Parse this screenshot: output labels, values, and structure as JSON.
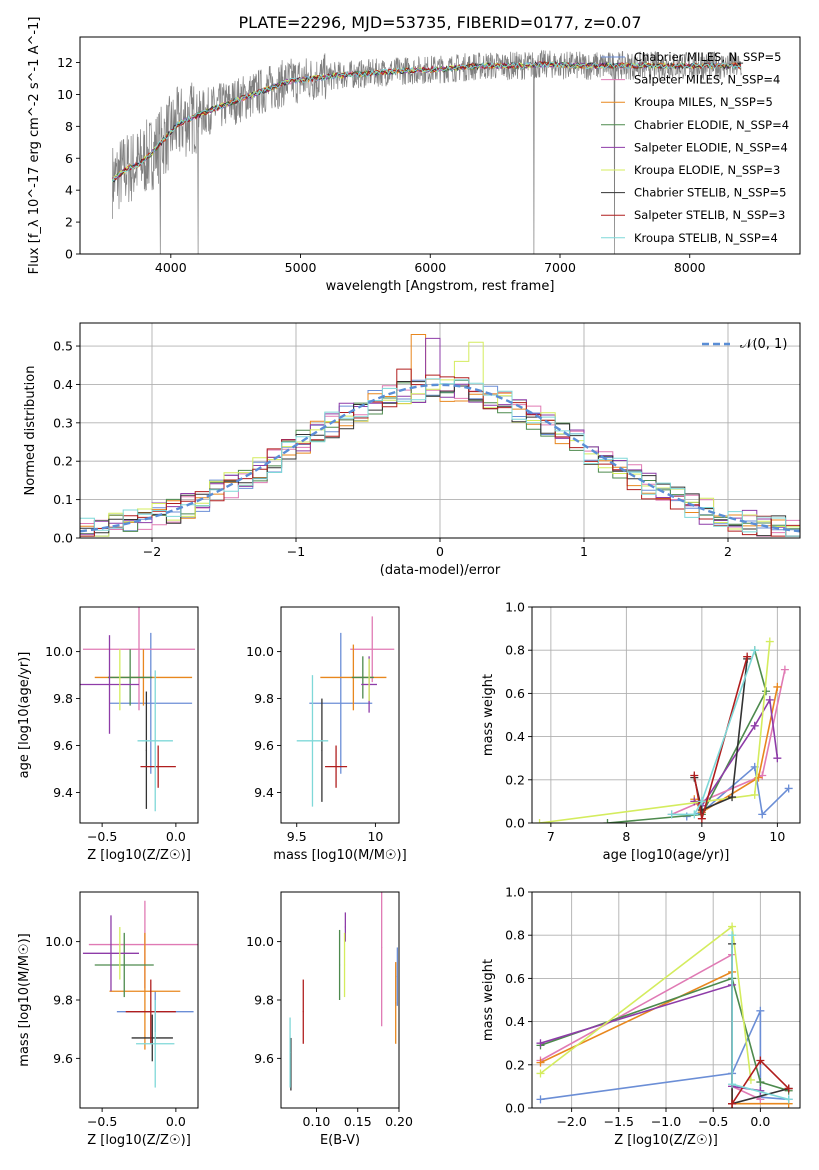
{
  "figure_title": "PLATE=2296, MJD=53735, FIBERID=0177, z=0.07",
  "chart_data": [
    {
      "id": "spectrum",
      "type": "line",
      "title": "PLATE=2296, MJD=53735, FIBERID=0177, z=0.07",
      "xlabel": "wavelength [Angstrom, rest frame]",
      "ylabel": "Flux [f_λ 10^-17 erg cm^-2 s^-1 A^-1]",
      "xlim": [
        3300,
        8850
      ],
      "ylim": [
        0,
        13.6
      ],
      "xticks": [
        4000,
        5000,
        6000,
        7000,
        8000
      ],
      "yticks": [
        0,
        2,
        4,
        6,
        8,
        10,
        12
      ],
      "grid": false,
      "legend_position": "right",
      "data_color": "#808080",
      "continuum": {
        "x": [
          3550,
          3650,
          3750,
          3850,
          3950,
          4050,
          4150,
          4300,
          4500,
          4700,
          4900,
          5100,
          5300,
          5500,
          5800,
          6100,
          6400,
          6700,
          6900,
          7100,
          7300,
          7500,
          7800,
          8100,
          8400
        ],
        "y": [
          4.6,
          5.3,
          5.6,
          6.3,
          7.2,
          8.1,
          8.5,
          9.0,
          9.6,
          10.2,
          10.8,
          11.0,
          11.2,
          11.3,
          11.5,
          11.6,
          11.8,
          11.8,
          11.9,
          11.8,
          11.8,
          11.8,
          11.8,
          11.8,
          11.8
        ]
      },
      "data_dips": [
        {
          "x": 3920,
          "y": 0
        },
        {
          "x": 4210,
          "y": 0
        },
        {
          "x": 6800,
          "y": 0
        },
        {
          "x": 7420,
          "y": 0
        }
      ],
      "series": [
        {
          "name": "Chabrier MILES, N_SSP=5",
          "color": "#6b8ed6"
        },
        {
          "name": "Salpeter MILES, N_SSP=4",
          "color": "#e07ab4"
        },
        {
          "name": "Kroupa MILES, N_SSP=5",
          "color": "#e8871e"
        },
        {
          "name": "Chabrier ELODIE, N_SSP=4",
          "color": "#4d8a4d"
        },
        {
          "name": "Salpeter ELODIE, N_SSP=4",
          "color": "#8e3ca8"
        },
        {
          "name": "Kroupa ELODIE, N_SSP=3",
          "color": "#d4ec5e"
        },
        {
          "name": "Chabrier STELIB, N_SSP=5",
          "color": "#333333"
        },
        {
          "name": "Salpeter STELIB, N_SSP=3",
          "color": "#b01e1e"
        },
        {
          "name": "Kroupa STELIB, N_SSP=4",
          "color": "#7fd8d8"
        }
      ]
    },
    {
      "id": "residuals",
      "type": "histogram",
      "xlabel": "(data-model)/error",
      "ylabel": "Normed distribution",
      "xlim": [
        -2.5,
        2.5
      ],
      "ylim": [
        0,
        0.56
      ],
      "xticks": [
        -2,
        -1,
        0,
        1,
        2
      ],
      "yticks": [
        0.0,
        0.1,
        0.2,
        0.3,
        0.4,
        0.5
      ],
      "grid": true,
      "legend_position": "top-right",
      "gaussian_label": "𝒩(0, 1)",
      "gaussian_color": "#5a8ed6",
      "bin_width": 0.1,
      "bin_start": -2.5,
      "outline_colors": [
        "#6b8ed6",
        "#e07ab4",
        "#e8871e",
        "#4d8a4d",
        "#8e3ca8",
        "#d4ec5e",
        "#333333",
        "#b01e1e",
        "#7fd8d8"
      ],
      "peak_spikes": [
        {
          "x": -0.15,
          "y": 0.53,
          "color": "#e8871e"
        },
        {
          "x": -0.05,
          "y": 0.52,
          "color": "#8e3ca8"
        },
        {
          "x": 0.15,
          "y": 0.46,
          "color": "#d4ec5e"
        },
        {
          "x": 0.25,
          "y": 0.51,
          "color": "#d4ec5e"
        },
        {
          "x": -0.25,
          "y": 0.44,
          "color": "#b01e1e"
        }
      ]
    },
    {
      "id": "age-vs-Z",
      "type": "scatter",
      "xlabel": "Z [log10(Z/Z☉)]",
      "ylabel": "age  [log10(age/yr)]",
      "xlim": [
        -0.65,
        0.15
      ],
      "ylim": [
        9.27,
        10.19
      ],
      "xticks": [
        -0.5,
        0.0
      ],
      "xtick_labels": [
        "−0.5",
        "0.0"
      ],
      "yticks": [
        9.4,
        9.6,
        9.8,
        10.0
      ],
      "grid": false,
      "points": [
        {
          "x": -0.17,
          "y": 9.78,
          "xerr": 0.28,
          "yerr": 0.3,
          "color": "#6b8ed6"
        },
        {
          "x": -0.25,
          "y": 10.01,
          "xerr": 0.38,
          "yerr": 0.26,
          "color": "#e07ab4"
        },
        {
          "x": -0.22,
          "y": 9.89,
          "xerr": 0.33,
          "yerr": 0.12,
          "color": "#e8871e"
        },
        {
          "x": -0.31,
          "y": 9.89,
          "xerr": 0.15,
          "yerr": 0.12,
          "color": "#4d8a4d"
        },
        {
          "x": -0.45,
          "y": 9.86,
          "xerr": 0.2,
          "yerr": 0.21,
          "color": "#8e3ca8"
        },
        {
          "x": -0.38,
          "y": 9.88,
          "xerr": 0.0,
          "yerr": 0.13,
          "color": "#d4ec5e"
        },
        {
          "x": -0.2,
          "y": 9.58,
          "xerr": 0.0,
          "yerr": 0.25,
          "color": "#333333"
        },
        {
          "x": -0.12,
          "y": 9.51,
          "xerr": 0.12,
          "yerr": 0.09,
          "color": "#b01e1e"
        },
        {
          "x": -0.14,
          "y": 9.62,
          "xerr": 0.12,
          "yerr": 0.3,
          "color": "#7fd8d8"
        }
      ]
    },
    {
      "id": "age-vs-mass",
      "type": "scatter",
      "xlabel": "mass [log10(M/M☉)]",
      "ylabel": "",
      "xlim": [
        9.4,
        10.15
      ],
      "ylim": [
        9.27,
        10.19
      ],
      "xticks": [
        9.5,
        10.0
      ],
      "yticks": [
        9.4,
        9.6,
        9.8,
        10.0
      ],
      "grid": false,
      "points": [
        {
          "x": 9.78,
          "y": 9.78,
          "xerr": 0.2,
          "yerr": 0.3,
          "color": "#6b8ed6"
        },
        {
          "x": 9.98,
          "y": 10.01,
          "xerr": 0.14,
          "yerr": 0.14,
          "color": "#e07ab4"
        },
        {
          "x": 9.86,
          "y": 9.89,
          "xerr": 0.21,
          "yerr": 0.14,
          "color": "#e8871e"
        },
        {
          "x": 9.92,
          "y": 9.89,
          "xerr": 0.07,
          "yerr": 0.09,
          "color": "#4d8a4d"
        },
        {
          "x": 9.96,
          "y": 9.86,
          "xerr": 0.05,
          "yerr": 0.12,
          "color": "#8e3ca8"
        },
        {
          "x": 9.96,
          "y": 9.88,
          "xerr": 0.0,
          "yerr": 0.09,
          "color": "#d4ec5e"
        },
        {
          "x": 9.66,
          "y": 9.58,
          "xerr": 0.0,
          "yerr": 0.22,
          "color": "#333333"
        },
        {
          "x": 9.75,
          "y": 9.51,
          "xerr": 0.07,
          "yerr": 0.09,
          "color": "#b01e1e"
        },
        {
          "x": 9.6,
          "y": 9.62,
          "xerr": 0.1,
          "yerr": 0.28,
          "color": "#7fd8d8"
        }
      ]
    },
    {
      "id": "weight-vs-age",
      "type": "line",
      "xlabel": "age  [log10(age/yr)]",
      "ylabel": "mass weight",
      "xlim": [
        6.75,
        10.3
      ],
      "ylim": [
        0,
        1.0
      ],
      "xticks": [
        7,
        8,
        9,
        10
      ],
      "yticks": [
        0.0,
        0.2,
        0.4,
        0.6,
        0.8,
        1.0
      ],
      "grid": true,
      "series": [
        {
          "color": "#6b8ed6",
          "x": [
            8.8,
            9.0,
            9.7,
            9.8,
            10.15
          ],
          "y": [
            0.03,
            0.05,
            0.26,
            0.04,
            0.16
          ]
        },
        {
          "color": "#e07ab4",
          "x": [
            8.6,
            9.0,
            9.8,
            10.1
          ],
          "y": [
            0.04,
            0.1,
            0.22,
            0.71
          ]
        },
        {
          "color": "#e8871e",
          "x": [
            8.9,
            9.0,
            9.75,
            10.0
          ],
          "y": [
            0.11,
            0.05,
            0.21,
            0.63
          ]
        },
        {
          "color": "#4d8a4d",
          "x": [
            7.75,
            9.0,
            9.85,
            9.7
          ],
          "y": [
            0.0,
            0.04,
            0.61,
            0.8
          ]
        },
        {
          "color": "#8e3ca8",
          "x": [
            8.9,
            9.0,
            9.7,
            9.9,
            10.0
          ],
          "y": [
            0.1,
            0.08,
            0.45,
            0.57,
            0.3
          ]
        },
        {
          "color": "#d4ec5e",
          "x": [
            6.85,
            9.7,
            9.9
          ],
          "y": [
            0.0,
            0.13,
            0.84
          ]
        },
        {
          "color": "#333333",
          "x": [
            8.9,
            9.0,
            9.4,
            9.6
          ],
          "y": [
            0.21,
            0.06,
            0.12,
            0.76
          ]
        },
        {
          "color": "#b01e1e",
          "x": [
            8.9,
            9.0,
            9.6
          ],
          "y": [
            0.22,
            0.02,
            0.77
          ]
        },
        {
          "color": "#7fd8d8",
          "x": [
            8.6,
            8.9,
            9.0,
            9.7
          ],
          "y": [
            0.04,
            0.04,
            0.1,
            0.8
          ]
        }
      ]
    },
    {
      "id": "mass-vs-Z",
      "type": "scatter",
      "xlabel": "Z [log10(Z/Z☉)]",
      "ylabel": "mass [log10(M/M☉)]",
      "xlim": [
        -0.65,
        0.15
      ],
      "ylim": [
        9.43,
        10.17
      ],
      "xticks": [
        -0.5,
        0.0
      ],
      "xtick_labels": [
        "−0.5",
        "0.0"
      ],
      "yticks": [
        9.6,
        9.8,
        10.0
      ],
      "grid": false,
      "points": [
        {
          "x": -0.14,
          "y": 9.76,
          "xerr": 0.26,
          "yerr": 0.07,
          "color": "#6b8ed6"
        },
        {
          "x": -0.21,
          "y": 9.99,
          "xerr": 0.38,
          "yerr": 0.15,
          "color": "#e07ab4"
        },
        {
          "x": -0.21,
          "y": 9.83,
          "xerr": 0.24,
          "yerr": 0.2,
          "color": "#e8871e"
        },
        {
          "x": -0.35,
          "y": 9.92,
          "xerr": 0.2,
          "yerr": 0.11,
          "color": "#4d8a4d"
        },
        {
          "x": -0.44,
          "y": 9.96,
          "xerr": 0.19,
          "yerr": 0.13,
          "color": "#8e3ca8"
        },
        {
          "x": -0.38,
          "y": 9.96,
          "xerr": 0.0,
          "yerr": 0.09,
          "color": "#d4ec5e"
        },
        {
          "x": -0.16,
          "y": 9.67,
          "xerr": 0.14,
          "yerr": 0.08,
          "color": "#333333"
        },
        {
          "x": -0.17,
          "y": 9.76,
          "xerr": 0.17,
          "yerr": 0.11,
          "color": "#b01e1e"
        },
        {
          "x": -0.14,
          "y": 9.65,
          "xerr": 0.13,
          "yerr": 0.15,
          "color": "#7fd8d8"
        }
      ]
    },
    {
      "id": "mass-vs-EBV",
      "type": "scatter",
      "xlabel": "E(B-V)",
      "ylabel": "",
      "xlim": [
        0.057,
        0.2
      ],
      "ylim": [
        9.43,
        10.17
      ],
      "xticks": [
        0.1,
        0.15,
        0.2
      ],
      "xtick_labels": [
        "0.10",
        "0.15",
        "0.20"
      ],
      "yticks": [
        9.6,
        9.8,
        10.0
      ],
      "grid": false,
      "points": [
        {
          "x": 0.198,
          "y": 9.88,
          "xerr": 0,
          "yerr": 0.1,
          "color": "#6b8ed6"
        },
        {
          "x": 0.179,
          "y": 9.98,
          "xerr": 0,
          "yerr": 0.27,
          "color": "#e07ab4"
        },
        {
          "x": 0.196,
          "y": 9.79,
          "xerr": 0,
          "yerr": 0.14,
          "color": "#e8871e"
        },
        {
          "x": 0.128,
          "y": 9.92,
          "xerr": 0,
          "yerr": 0.12,
          "color": "#4d8a4d"
        },
        {
          "x": 0.135,
          "y": 10.05,
          "xerr": 0,
          "yerr": 0.05,
          "color": "#8e3ca8"
        },
        {
          "x": 0.134,
          "y": 9.92,
          "xerr": 0,
          "yerr": 0.11,
          "color": "#d4ec5e"
        },
        {
          "x": 0.069,
          "y": 9.58,
          "xerr": 0,
          "yerr": 0.09,
          "color": "#333333"
        },
        {
          "x": 0.084,
          "y": 9.76,
          "xerr": 0,
          "yerr": 0.11,
          "color": "#b01e1e"
        },
        {
          "x": 0.068,
          "y": 9.62,
          "xerr": 0,
          "yerr": 0.12,
          "color": "#7fd8d8"
        }
      ]
    },
    {
      "id": "weight-vs-Z",
      "type": "line",
      "xlabel": "Z [log10(Z/Z☉)]",
      "ylabel": "mass weight",
      "xlim": [
        -2.42,
        0.42
      ],
      "ylim": [
        0,
        1.0
      ],
      "xticks": [
        -2.0,
        -1.5,
        -1.0,
        -0.5,
        0.0
      ],
      "xtick_labels": [
        "−2.0",
        "−1.5",
        "−1.0",
        "−0.5",
        "0.0"
      ],
      "yticks": [
        0.0,
        0.2,
        0.4,
        0.6,
        0.8,
        1.0
      ],
      "grid": true,
      "series": [
        {
          "color": "#6b8ed6",
          "x": [
            -2.33,
            -0.3,
            0.0,
            0.0,
            0.3
          ],
          "y": [
            0.04,
            0.16,
            0.45,
            0.05,
            0.04
          ]
        },
        {
          "color": "#e07ab4",
          "x": [
            -2.33,
            -0.3,
            -0.3,
            0.0
          ],
          "y": [
            0.22,
            0.71,
            0.1,
            0.04
          ]
        },
        {
          "color": "#e8871e",
          "x": [
            -2.33,
            -0.3,
            -0.3,
            0.3
          ],
          "y": [
            0.21,
            0.63,
            0.02,
            0.02
          ]
        },
        {
          "color": "#4d8a4d",
          "x": [
            -2.33,
            -0.3,
            0.0,
            0.3
          ],
          "y": [
            0.29,
            0.6,
            0.12,
            0.08
          ]
        },
        {
          "color": "#8e3ca8",
          "x": [
            -2.33,
            -0.3,
            -0.3,
            0.0
          ],
          "y": [
            0.3,
            0.57,
            0.1,
            0.08
          ]
        },
        {
          "color": "#d4ec5e",
          "x": [
            -2.33,
            -0.3,
            -0.1
          ],
          "y": [
            0.16,
            0.84,
            0.13
          ]
        },
        {
          "color": "#333333",
          "x": [
            -0.3,
            -0.3,
            0.3
          ],
          "y": [
            0.76,
            0.02,
            0.09
          ]
        },
        {
          "color": "#b01e1e",
          "x": [
            -0.3,
            -0.3,
            0.0,
            0.3
          ],
          "y": [
            0.02,
            0.02,
            0.22,
            0.09
          ]
        },
        {
          "color": "#7fd8d8",
          "x": [
            -0.3,
            -0.3,
            0.3
          ],
          "y": [
            0.8,
            0.11,
            0.04
          ]
        }
      ]
    }
  ]
}
